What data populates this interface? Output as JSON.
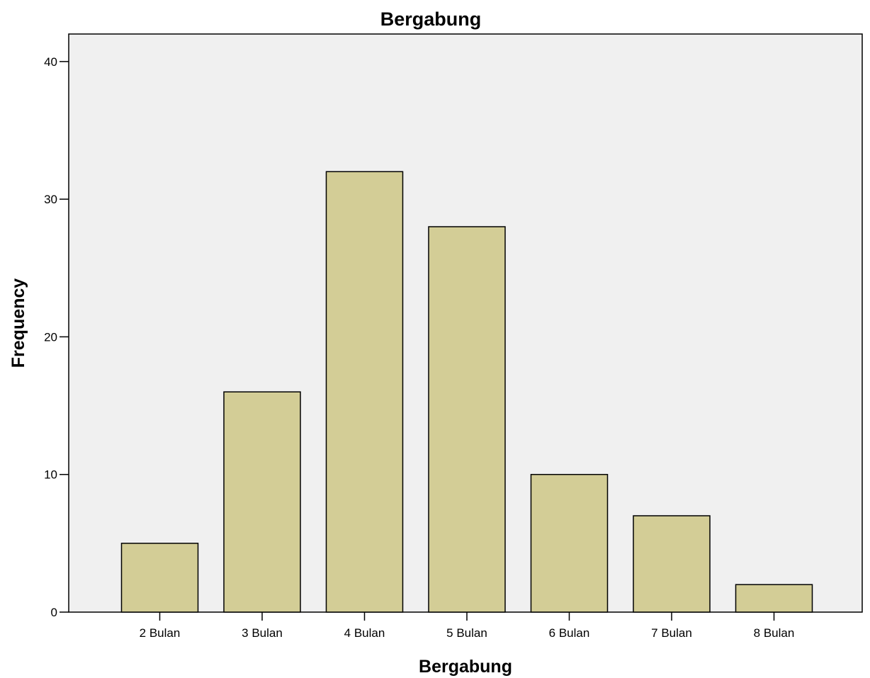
{
  "chart_data": {
    "type": "bar",
    "title": "Bergabung",
    "xlabel": "Bergabung",
    "ylabel": "Frequency",
    "categories": [
      "2 Bulan",
      "3 Bulan",
      "4 Bulan",
      "5 Bulan",
      "6 Bulan",
      "7 Bulan",
      "8 Bulan"
    ],
    "values": [
      5,
      16,
      32,
      28,
      10,
      7,
      2
    ],
    "ylim": [
      0,
      42
    ],
    "yticks": [
      0,
      10,
      20,
      30,
      40
    ],
    "grid": false,
    "legend": "none",
    "colors": {
      "bar_fill": "#d3cd96",
      "plot_background": "#f0f0f0",
      "bar_stroke": "#000000"
    }
  }
}
